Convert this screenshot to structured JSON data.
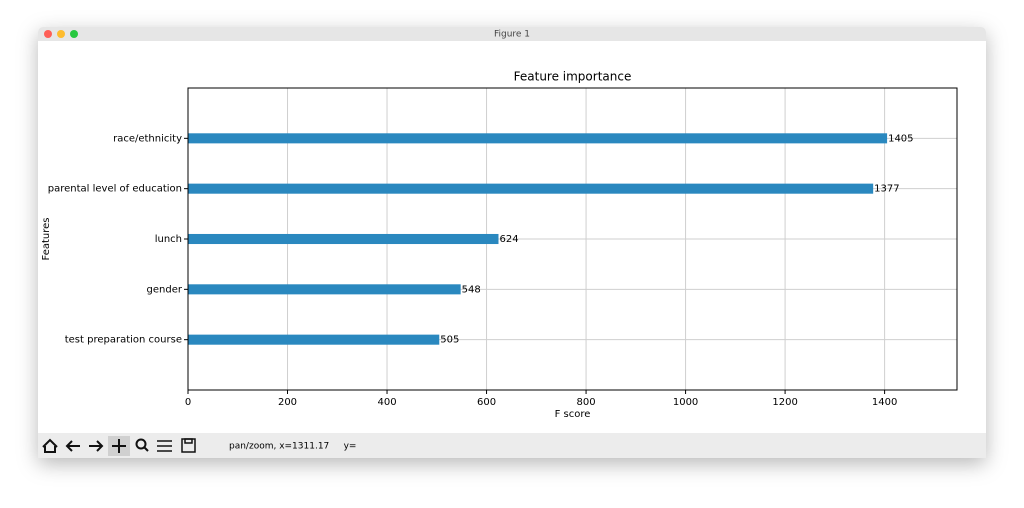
{
  "window": {
    "title": "Figure 1"
  },
  "chart_data": {
    "type": "barh",
    "title": "Feature importance",
    "xlabel": "F score",
    "ylabel": "Features",
    "categories": [
      "race/ethnicity",
      "parental level of education",
      "lunch",
      "gender",
      "test preparation course"
    ],
    "values": [
      1405,
      1377,
      624,
      548,
      505
    ],
    "color": "#2a88bf",
    "xlim": [
      0,
      1545.5
    ],
    "xticks": [
      0,
      200,
      400,
      600,
      800,
      1000,
      1200,
      1400
    ],
    "grid": true
  },
  "toolbar": {
    "status": "pan/zoom, x=1311.17     y="
  }
}
